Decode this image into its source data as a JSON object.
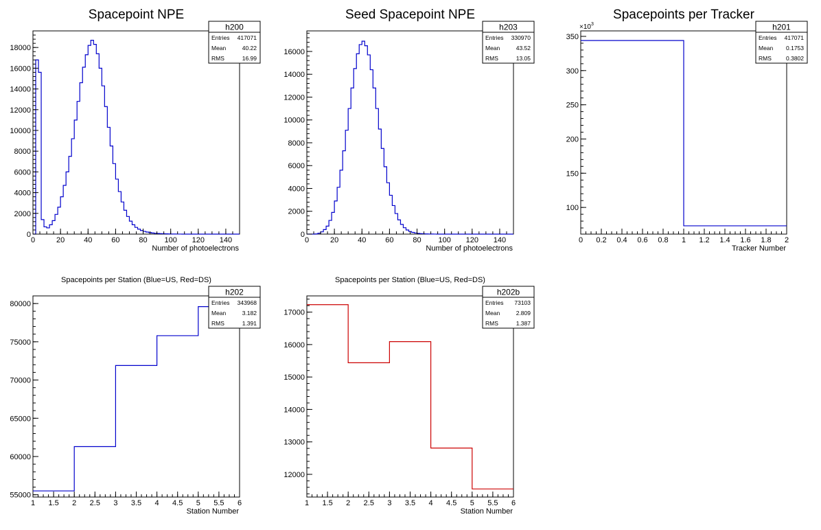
{
  "chart_data": [
    {
      "id": "npe",
      "type": "histogram",
      "title": "Spacepoint NPE",
      "xlabel": "Number of photoelectrons",
      "ylabel": "",
      "xlim": [
        0,
        150
      ],
      "ylim": [
        0,
        19600
      ],
      "xticks": [
        0,
        20,
        40,
        60,
        80,
        100,
        120,
        140
      ],
      "yticks": [
        0,
        2000,
        4000,
        6000,
        8000,
        10000,
        12000,
        14000,
        16000,
        18000
      ],
      "line_color": "#0000cc",
      "bin_width": 2,
      "values": [
        0,
        16800,
        15600,
        1400,
        700,
        600,
        900,
        1300,
        1900,
        2600,
        3600,
        4700,
        6000,
        7500,
        9200,
        11000,
        12800,
        14600,
        16100,
        17300,
        18200,
        18700,
        18300,
        17400,
        16000,
        14300,
        12300,
        10300,
        8500,
        6800,
        5300,
        4100,
        3100,
        2300,
        1700,
        1250,
        900,
        650,
        480,
        350,
        260,
        200,
        150,
        110,
        80,
        60,
        45,
        35,
        25,
        18,
        12,
        8,
        5,
        3,
        2,
        1,
        0,
        0,
        0,
        0,
        0,
        0,
        0,
        0,
        0,
        0,
        0,
        0,
        0,
        0,
        0,
        0,
        0,
        0,
        0
      ],
      "stats": {
        "name": "h200",
        "entries": "417071",
        "mean": "40.22",
        "rms": "16.99"
      }
    },
    {
      "id": "seed",
      "type": "histogram",
      "title": "Seed Spacepoint NPE",
      "xlabel": "Number of photoelectrons",
      "ylabel": "",
      "xlim": [
        0,
        150
      ],
      "ylim": [
        0,
        17800
      ],
      "xticks": [
        0,
        20,
        40,
        60,
        80,
        100,
        120,
        140
      ],
      "yticks": [
        0,
        2000,
        4000,
        6000,
        8000,
        10000,
        12000,
        14000,
        16000
      ],
      "line_color": "#0000cc",
      "bin_width": 2,
      "values": [
        0,
        0,
        0,
        20,
        80,
        200,
        400,
        700,
        1200,
        1900,
        2900,
        4100,
        5600,
        7300,
        9100,
        11000,
        12800,
        14500,
        15800,
        16600,
        16900,
        16500,
        15700,
        14400,
        12800,
        11000,
        9200,
        7500,
        5900,
        4500,
        3400,
        2500,
        1800,
        1250,
        850,
        560,
        360,
        230,
        150,
        100,
        65,
        40,
        25,
        15,
        10,
        6,
        3,
        2,
        1,
        0,
        0,
        0,
        0,
        0,
        0,
        0,
        0,
        0,
        0,
        0,
        0,
        0,
        0,
        0,
        0,
        0,
        0,
        0,
        0,
        0,
        0,
        0,
        0,
        0,
        0
      ],
      "stats": {
        "name": "h203",
        "entries": "330970",
        "mean": "43.52",
        "rms": "13.05"
      }
    },
    {
      "id": "tracker",
      "type": "histogram",
      "title": "Spacepoints per Tracker",
      "xlabel": "Tracker Number",
      "ylabel": "",
      "xlim": [
        0,
        2
      ],
      "ylim": [
        61,
        358
      ],
      "xticks": [
        0,
        0.2,
        0.4,
        0.6,
        0.8,
        1,
        1.2,
        1.4,
        1.6,
        1.8,
        2
      ],
      "yticks": [
        100,
        150,
        200,
        250,
        300,
        350
      ],
      "exponent_label": "×10",
      "exponent_power": "3",
      "line_color": "#0000cc",
      "bin_width": 1,
      "values": [
        343.968,
        73.103
      ],
      "stats": {
        "name": "h201",
        "entries": "417071",
        "mean": "0.1753",
        "rms": "0.3802"
      }
    },
    {
      "id": "station_us",
      "type": "histogram",
      "title": "Spacepoints per Station (Blue=US, Red=DS)",
      "xlabel": "Station Number",
      "ylabel": "",
      "xlim": [
        1,
        6
      ],
      "ylim": [
        54700,
        81000
      ],
      "xticks": [
        1,
        1.5,
        2,
        2.5,
        3,
        3.5,
        4,
        4.5,
        5,
        5.5,
        6
      ],
      "yticks": [
        55000,
        60000,
        65000,
        70000,
        75000,
        80000
      ],
      "line_color": "#0000cc",
      "bin_width": 1,
      "values": [
        55500,
        61300,
        71900,
        75800,
        79600
      ],
      "stats": {
        "name": "h202",
        "entries": "343968",
        "mean": "3.182",
        "rms": "1.391"
      }
    },
    {
      "id": "station_ds",
      "type": "histogram",
      "title": "Spacepoints per Station (Blue=US, Red=DS)",
      "xlabel": "Station Number",
      "ylabel": "",
      "xlim": [
        1,
        6
      ],
      "ylim": [
        11300,
        17500
      ],
      "xticks": [
        1,
        1.5,
        2,
        2.5,
        3,
        3.5,
        4,
        4.5,
        5,
        5.5,
        6
      ],
      "yticks": [
        12000,
        13000,
        14000,
        15000,
        16000,
        17000
      ],
      "line_color": "#cc0000",
      "bin_width": 1,
      "values": [
        17230,
        15440,
        16090,
        12810,
        11550
      ],
      "stats": {
        "name": "h202b",
        "entries": "73103",
        "mean": "2.809",
        "rms": "1.387"
      }
    }
  ],
  "stats_labels": {
    "entries": "Entries",
    "mean": "Mean",
    "rms": "RMS"
  }
}
